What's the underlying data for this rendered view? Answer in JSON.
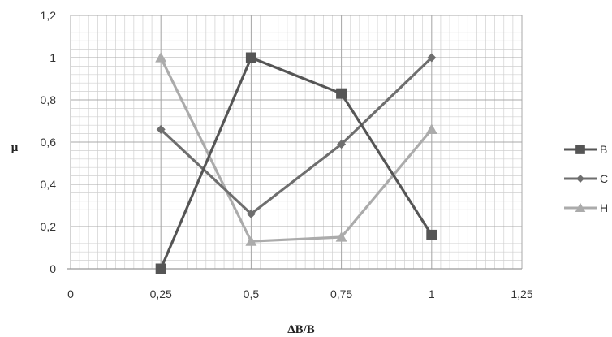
{
  "chart_data": {
    "type": "line",
    "title": "",
    "xlabel": "ΔB/B",
    "ylabel": "μ",
    "xlim": [
      0,
      1.25
    ],
    "ylim": [
      0,
      1.2
    ],
    "x_ticks": [
      0,
      0.25,
      0.5,
      0.75,
      1,
      1.25
    ],
    "x_tick_labels": [
      "0",
      "0,25",
      "0,5",
      "0,75",
      "1",
      "1,25"
    ],
    "y_ticks": [
      0,
      0.2,
      0.4,
      0.6,
      0.8,
      1,
      1.2
    ],
    "y_tick_labels": [
      "0",
      "0,2",
      "0,4",
      "0,6",
      "0,8",
      "1",
      "1,2"
    ],
    "grid": true,
    "legend_position": "right",
    "x": [
      0.25,
      0.5,
      0.75,
      1
    ],
    "series": [
      {
        "name": "B",
        "values": [
          0,
          1,
          0.83,
          0.16
        ],
        "color": "#555555",
        "marker": "square"
      },
      {
        "name": "C",
        "values": [
          0.66,
          0.26,
          0.59,
          1
        ],
        "color": "#6e6e6e",
        "marker": "diamond"
      },
      {
        "name": "H",
        "values": [
          1,
          0.13,
          0.15,
          0.66
        ],
        "color": "#ababab",
        "marker": "triangle"
      }
    ]
  }
}
